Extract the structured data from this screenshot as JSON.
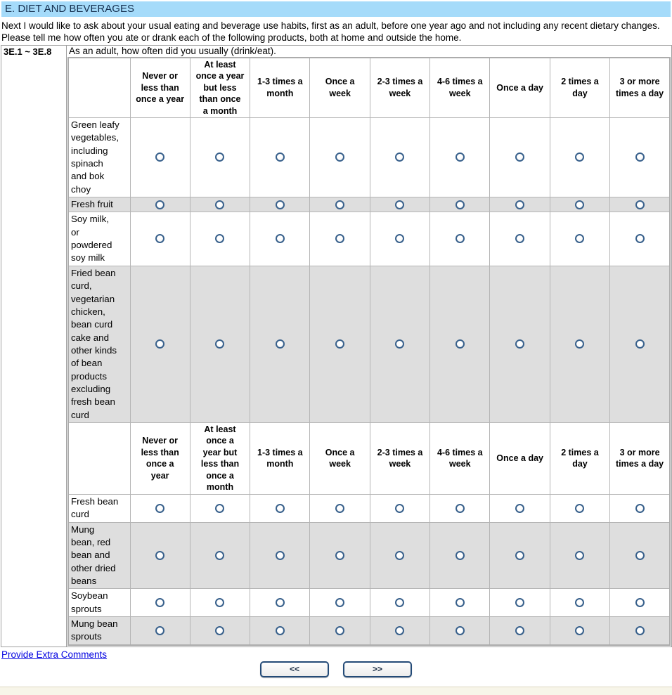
{
  "page": {
    "section_header": "E. DIET AND BEVERAGES",
    "intro": "Next I would like to ask about your usual eating and beverage use habits, first as an adult, before one year ago and not including any recent dietary changes. Please tell me how often you ate or drank each of the following products, both at home and outside the home.",
    "question_number": "3E.1 ~ 3E.8",
    "question_text": "As an adult, how often did you usually (drink/eat)."
  },
  "matrix": {
    "frequency_options": [
      "Never or less than once a year",
      "At least once a year but less than once a month",
      "1-3 times a month",
      "Once a week",
      "2-3 times a week",
      "4-6 times a week",
      "Once a day",
      "2 times a day",
      "3 or more times a day"
    ],
    "sections": [
      {
        "header": [
          "Never or\nless than\nonce a year",
          "At least\nonce a year\nbut less\nthan once\na month",
          "1-3 times a\nmonth",
          "Once a\nweek",
          "2-3 times a\nweek",
          "4-6 times a\nweek",
          "Once a day",
          "2 times a\nday",
          "3 or more\ntimes a day"
        ],
        "rows": [
          {
            "label": "Green leafy\nvegetables,\nincluding\nspinach\nand bok\nchoy",
            "selected": null
          },
          {
            "label": "Fresh fruit",
            "selected": null
          },
          {
            "label": "Soy milk,\nor\npowdered\nsoy milk",
            "selected": null
          },
          {
            "label": "Fried bean\ncurd,\nvegetarian\nchicken,\nbean curd\ncake and\nother kinds\nof bean\nproducts\nexcluding\nfresh bean\ncurd",
            "selected": null
          }
        ]
      },
      {
        "header": [
          "Never or\nless than\nonce a\nyear",
          "At least\nonce a\nyear but\nless than\nonce a\nmonth",
          "1-3 times a\nmonth",
          "Once a\nweek",
          "2-3 times a\nweek",
          "4-6 times a\nweek",
          "Once a day",
          "2 times a\nday",
          "3 or more\ntimes a day"
        ],
        "rows": [
          {
            "label": "Fresh bean\ncurd",
            "selected": null
          },
          {
            "label": "Mung\nbean, red\nbean and\nother dried\nbeans",
            "selected": null
          },
          {
            "label": "Soybean\nsprouts",
            "selected": null
          },
          {
            "label": "Mung bean\nsprouts",
            "selected": null
          }
        ]
      }
    ]
  },
  "footer": {
    "comments_link": "Provide Extra Comments",
    "prev_label": "<<",
    "next_label": ">>"
  },
  "colors": {
    "header_bar_bg": "#a5dbfa",
    "row_shaded_bg": "#dedede",
    "radio_border": "#39618c",
    "link_color": "#0000e0",
    "button_border": "#234a77",
    "footer_strip_bg": "#f7f5e9"
  }
}
